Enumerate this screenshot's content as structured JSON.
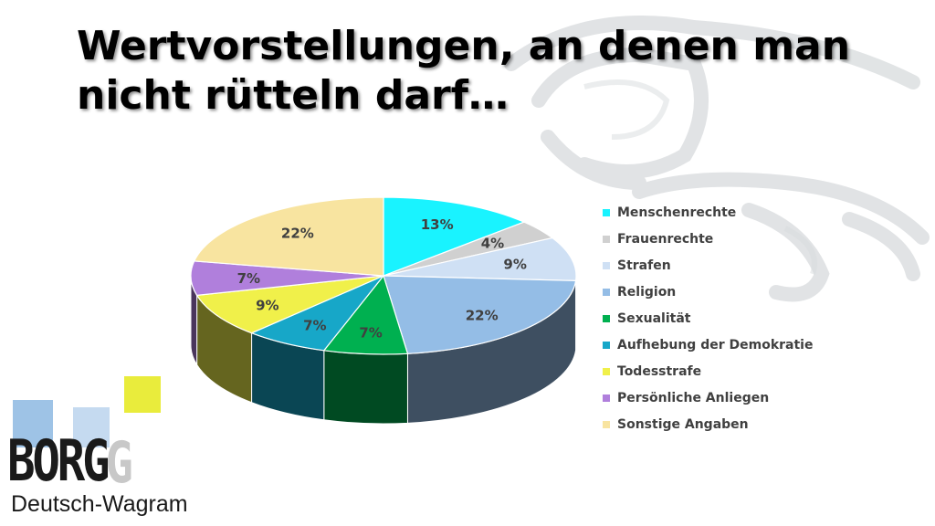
{
  "slide": {
    "title_line1": "Wertvorstellungen, an denen man",
    "title_line2": "nicht rütteln darf…"
  },
  "logo": {
    "name": "BORG",
    "subtitle": "Deutsch-Wagram",
    "colors": [
      "#9ec3e6",
      "#c5daf0",
      "#e9ec3c"
    ]
  },
  "chart_data": {
    "type": "pie",
    "style": "3d",
    "legend_position": "right",
    "title": "",
    "categories": [
      "Menschenrechte",
      "Frauenrechte",
      "Strafen",
      "Religion",
      "Sexualität",
      "Aufhebung der Demokratie",
      "Todesstrafe",
      "Persönliche Anliegen",
      "Sonstige Angaben"
    ],
    "values": [
      13,
      4,
      9,
      22,
      7,
      7,
      9,
      7,
      22
    ],
    "labels": [
      "13%",
      "4%",
      "9%",
      "22%",
      "7%",
      "7%",
      "9%",
      "7%",
      "22%"
    ],
    "colors": [
      "#19f3ff",
      "#d0d0d0",
      "#cfe0f4",
      "#94bde6",
      "#00b050",
      "#17a7c8",
      "#f0f04a",
      "#b07fdc",
      "#f8e4a0"
    ]
  }
}
